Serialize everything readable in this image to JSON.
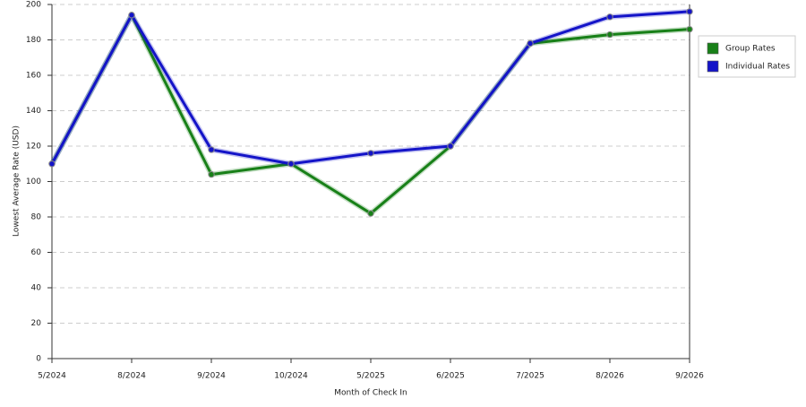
{
  "chart_data": {
    "type": "line",
    "x_label": "Month of Check In",
    "y_label": "Lowest Average Rate (USD)",
    "categories": [
      "5/2024",
      "8/2024",
      "9/2024",
      "10/2024",
      "5/2025",
      "6/2025",
      "7/2025",
      "8/2026",
      "9/2026"
    ],
    "series": [
      {
        "name": "Group Rates",
        "color": "#188018",
        "values": [
          110,
          194,
          104,
          110,
          82,
          120,
          178,
          183,
          186
        ]
      },
      {
        "name": "Individual Rates",
        "color": "#1414c8",
        "values": [
          110,
          194,
          118,
          110,
          116,
          120,
          178,
          193,
          196
        ]
      }
    ],
    "ylim": [
      0,
      200
    ],
    "yticks": [
      0,
      20,
      40,
      60,
      80,
      100,
      120,
      140,
      160,
      180,
      200
    ],
    "grid": true,
    "legend": "right"
  }
}
